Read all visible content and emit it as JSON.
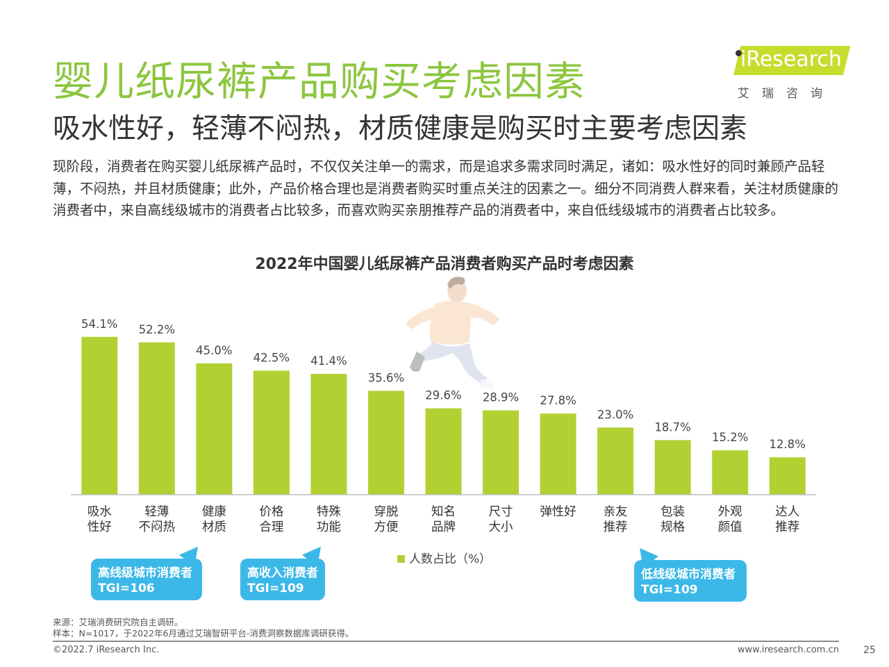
{
  "header": {
    "title": "婴儿纸尿裤产品购买考虑因素",
    "subtitle": "吸水性好，轻薄不闷热，材质健康是购买时主要考虑因素",
    "logo_text": "iResearch",
    "logo_cn": "艾瑞咨询",
    "brand_color": "#c7dd2e",
    "title_color": "#8cc63f"
  },
  "intro_text": "现阶段，消费者在购买婴儿纸尿裤产品时，不仅仅关注单一的需求，而是追求多需求同时满足，诸如：吸水性好的同时兼顾产品轻薄，不闷热，并且材质健康；此外，产品价格合理也是消费者购买时重点关注的因素之一。细分不同消费人群来看，关注材质健康的消费者中，来自高线级城市的消费者占比较多，而喜欢购买亲朋推荐产品的消费者中，来自低线级城市的消费者占比较多。",
  "chart_data": {
    "type": "bar",
    "title": "2022年中国婴儿纸尿裤产品消费者购买产品时考虑因素",
    "categories": [
      [
        "吸水",
        "性好"
      ],
      [
        "轻薄",
        "不闷热"
      ],
      [
        "健康",
        "材质"
      ],
      [
        "价格",
        "合理"
      ],
      [
        "特殊",
        "功能"
      ],
      [
        "穿脱",
        "方便"
      ],
      [
        "知名",
        "品牌"
      ],
      [
        "尺寸",
        "大小"
      ],
      [
        "弹性好"
      ],
      [
        "亲友",
        "推荐"
      ],
      [
        "包装",
        "规格"
      ],
      [
        "外观",
        "颜值"
      ],
      [
        "达人",
        "推荐"
      ]
    ],
    "series": [
      {
        "name": "人数占比（%）",
        "values": [
          54.1,
          52.2,
          45.0,
          42.5,
          41.4,
          35.6,
          29.6,
          28.9,
          27.8,
          23.0,
          18.7,
          15.2,
          12.8
        ],
        "labels": [
          "54.1%",
          "52.2%",
          "45.0%",
          "42.5%",
          "41.4%",
          "35.6%",
          "29.6%",
          "28.9%",
          "27.8%",
          "23.0%",
          "18.7%",
          "15.2%",
          "12.8%"
        ],
        "color": "#b1d133"
      }
    ],
    "ylim": [
      0,
      60
    ],
    "grid": false,
    "legend_position": "bottom-center"
  },
  "legend_label": "人数占比（%）",
  "callouts": [
    {
      "line1": "高线级城市消费者",
      "line2": "TGI=106"
    },
    {
      "line1": "高收入消费者",
      "line2": "TGI=109"
    },
    {
      "line1": "低线级城市消费者",
      "line2": "TGI=109"
    }
  ],
  "callout_color": "#3bb8e8",
  "footer": {
    "source": "来源：艾瑞消费研究院自主调研。",
    "sample": "样本：N=1017，于2022年6月通过艾瑞智研平台-消费洞察数据库调研获得。",
    "copyright": "©2022.7 iResearch Inc.",
    "url": "www.iresearch.com.cn",
    "page": "25"
  }
}
